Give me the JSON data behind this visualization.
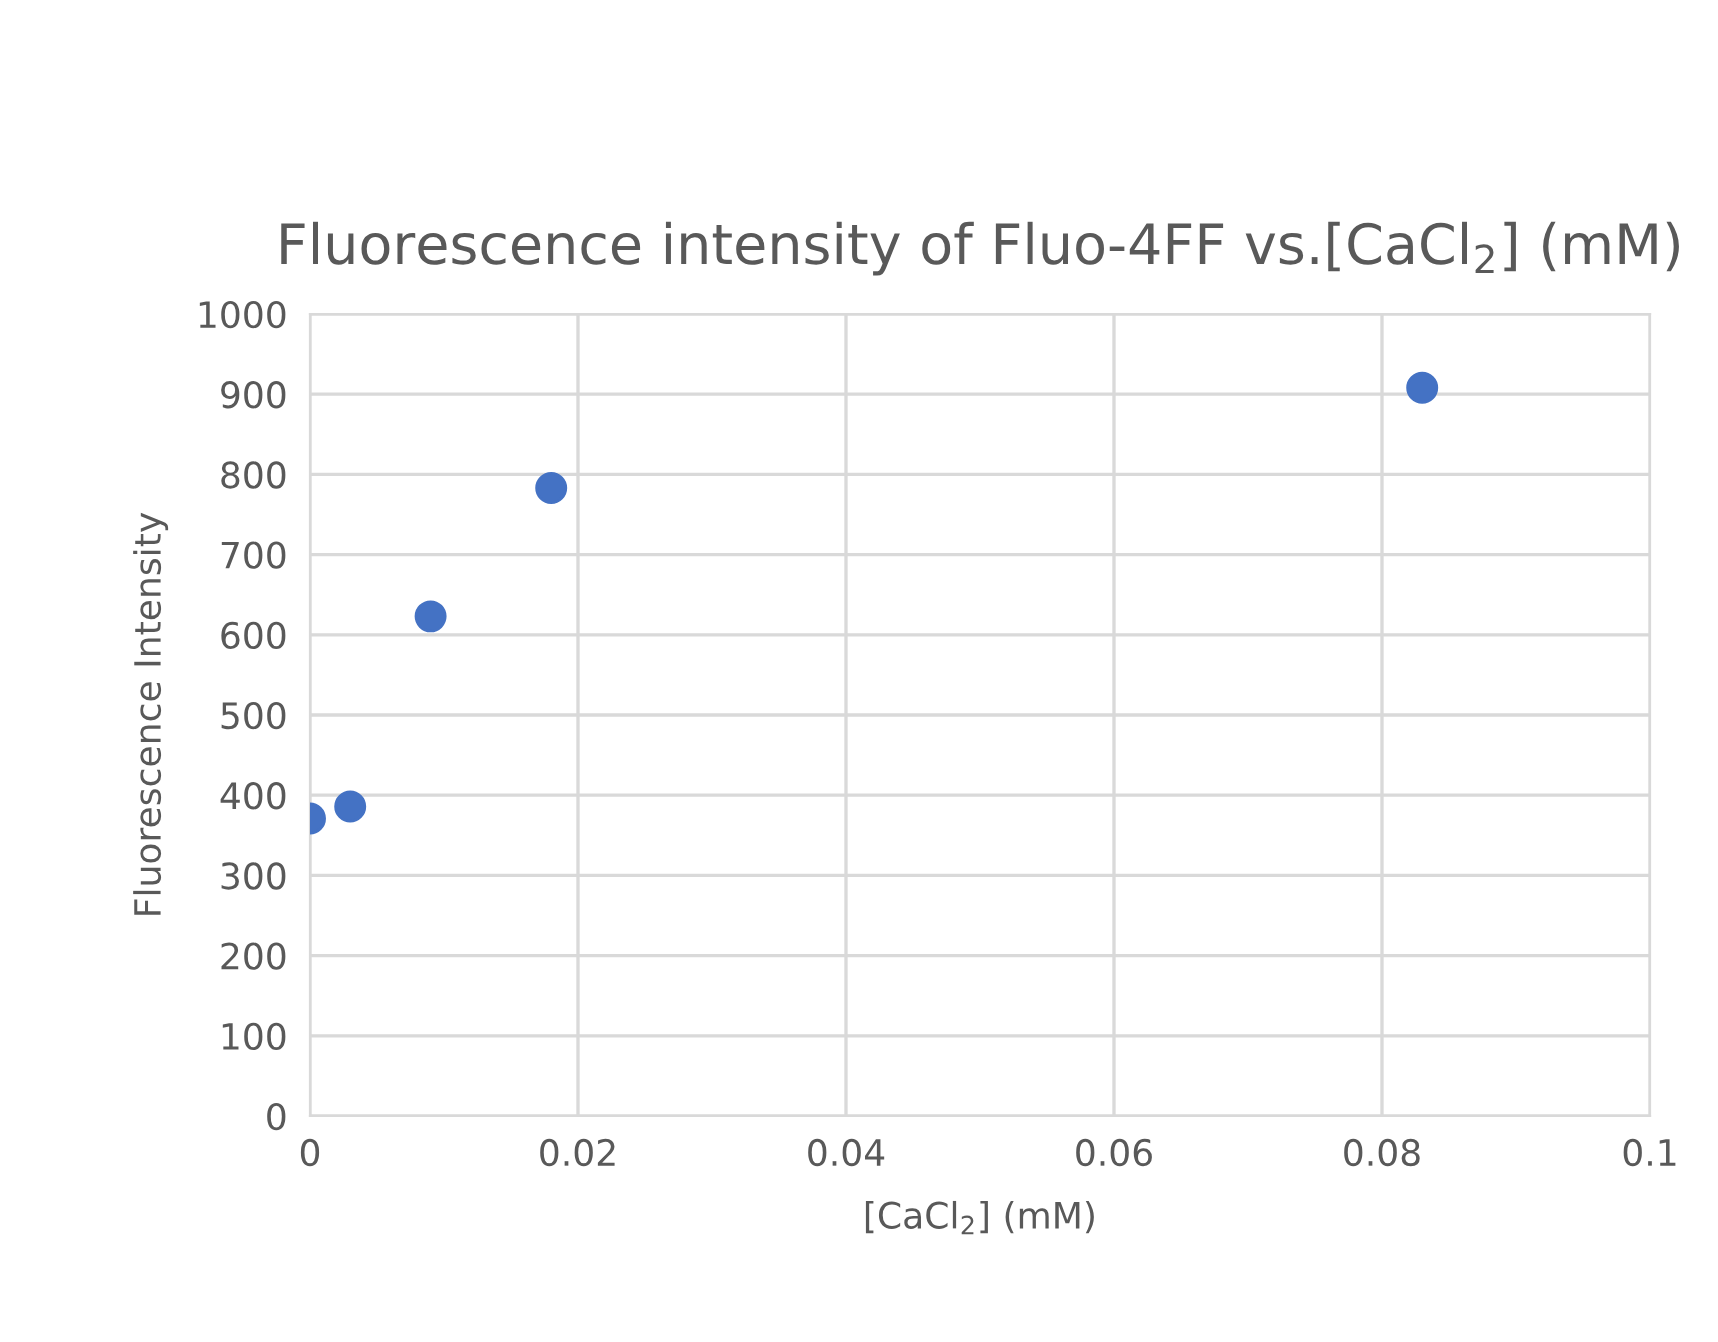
{
  "chart_data": {
    "type": "scatter",
    "title": "Fluorescence intensity of Fluo-4FF vs.[CaCl$_{2}$] (mM)",
    "xlabel": "[CaCl$_{2}$] (mM)",
    "ylabel": "Fluorescence Intensity",
    "x": [
      0,
      0.003,
      0.009,
      0.018,
      0.083
    ],
    "series": [
      {
        "color": "#4472c4",
        "values": [
          371,
          386,
          623,
          783,
          908
        ]
      }
    ],
    "xlim": [
      0,
      0.1
    ],
    "xticks": [
      0,
      0.02,
      0.04,
      0.06,
      0.08,
      0.1
    ],
    "ylim": [
      0,
      1000
    ],
    "yticks": [
      0,
      100,
      200,
      300,
      400,
      500,
      600,
      700,
      800,
      900,
      1000
    ],
    "grid": true,
    "marker": "circle"
  }
}
